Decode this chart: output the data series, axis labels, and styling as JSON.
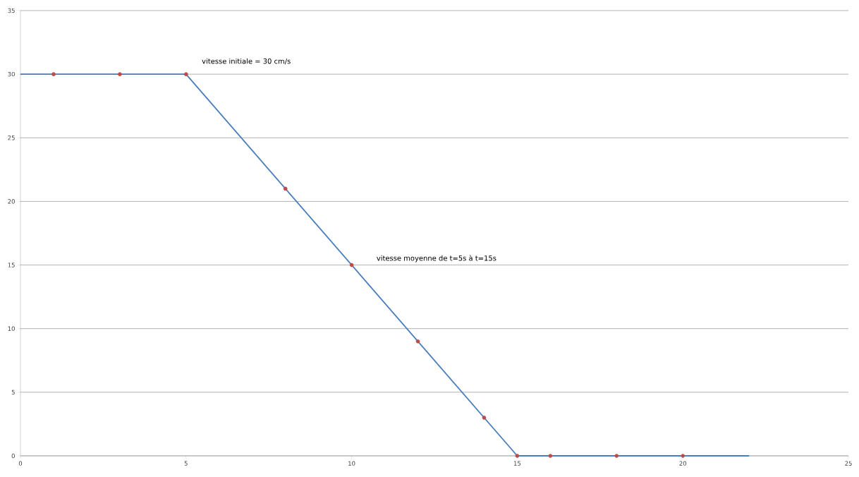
{
  "chart_data": {
    "type": "line",
    "series": [
      {
        "color": "#4a7ebb",
        "x": [
          0,
          5,
          15,
          22
        ],
        "values": [
          30,
          30,
          0,
          0
        ],
        "marker": "none",
        "line_style": "solid"
      },
      {
        "type": "scatter",
        "color": "#be4b48",
        "x": [
          1,
          3,
          5,
          8,
          10,
          12,
          14,
          15,
          16,
          18,
          20
        ],
        "values": [
          30,
          30,
          30,
          21,
          15,
          9,
          3,
          0,
          0,
          0,
          0
        ],
        "marker": "circle"
      }
    ],
    "xlim": [
      0,
      25
    ],
    "xticks": [
      0,
      5,
      10,
      15,
      20,
      25
    ],
    "ylim": [
      0,
      35
    ],
    "yticks": [
      0,
      5,
      10,
      15,
      20,
      25,
      30,
      35
    ],
    "grid": "y",
    "annotations": [
      "vitesse initiale = 30 cm/s",
      "vitesse moyenne de t=5s à t=15s"
    ]
  }
}
